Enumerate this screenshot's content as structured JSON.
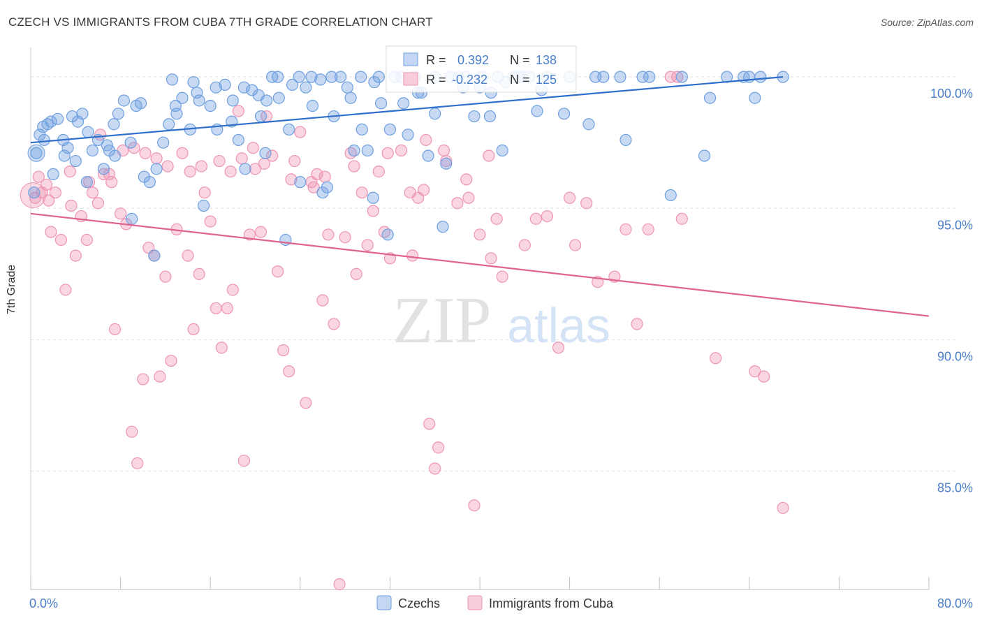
{
  "title": "CZECH VS IMMIGRANTS FROM CUBA 7TH GRADE CORRELATION CHART",
  "source": "Source: ZipAtlas.com",
  "watermark": {
    "zip": "ZIP",
    "atlas": "atlas"
  },
  "colors": {
    "czech": "#6e9fe0",
    "czech_line": "#2f6fcc",
    "cuba": "#ee94b4",
    "cuba_line": "#e0638f",
    "tick_text": "#4a7ec9",
    "grid": "#e1e1e1"
  },
  "legend": {
    "r_label": "R =",
    "n_label": "N =",
    "czech": {
      "r": "0.392",
      "n": "138"
    },
    "cuba": {
      "r": "-0.232",
      "n": "125"
    }
  },
  "chart_data": {
    "type": "scatter",
    "xlabel": "",
    "ylabel": "7th Grade",
    "xlim": [
      0,
      80
    ],
    "ylim": [
      80.5,
      100.8
    ],
    "x_tick_labels": [
      "0.0%",
      "80.0%"
    ],
    "y_ticks": [
      85,
      90,
      95,
      100
    ],
    "y_tick_labels": [
      "85.0%",
      "90.0%",
      "95.0%",
      "100.0%"
    ],
    "grid": true,
    "legend_position": "bottom-center",
    "series": [
      {
        "name": "Czechs",
        "r": 0.392,
        "n": 138,
        "trend": [
          [
            0,
            97.5
          ],
          [
            67,
            100.0
          ]
        ],
        "points": [
          [
            0.5,
            97.1
          ],
          [
            0.8,
            97.8
          ],
          [
            1.1,
            98.1
          ],
          [
            1.5,
            98.2
          ],
          [
            1.8,
            98.3
          ],
          [
            2.4,
            98.4
          ],
          [
            2.9,
            97.6
          ],
          [
            3.3,
            97.3
          ],
          [
            3.7,
            98.5
          ],
          [
            4.2,
            98.3
          ],
          [
            4.6,
            98.6
          ],
          [
            5.1,
            97.9
          ],
          [
            5.5,
            97.2
          ],
          [
            6.0,
            97.6
          ],
          [
            6.5,
            96.5
          ],
          [
            7.0,
            97.2
          ],
          [
            7.4,
            98.2
          ],
          [
            7.8,
            98.6
          ],
          [
            8.3,
            99.1
          ],
          [
            8.9,
            97.5
          ],
          [
            9.4,
            98.9
          ],
          [
            10.1,
            96.2
          ],
          [
            10.6,
            96.0
          ],
          [
            11.2,
            96.5
          ],
          [
            11.8,
            97.5
          ],
          [
            12.3,
            98.2
          ],
          [
            12.9,
            98.9
          ],
          [
            13.5,
            99.2
          ],
          [
            14.2,
            98.0
          ],
          [
            14.8,
            99.4
          ],
          [
            15.4,
            95.1
          ],
          [
            16.0,
            98.9
          ],
          [
            16.6,
            98.0
          ],
          [
            17.3,
            99.7
          ],
          [
            17.9,
            98.3
          ],
          [
            18.5,
            97.6
          ],
          [
            19.1,
            96.5
          ],
          [
            19.7,
            99.5
          ],
          [
            20.3,
            99.3
          ],
          [
            20.9,
            97.1
          ],
          [
            21.5,
            100.0
          ],
          [
            22.1,
            99.2
          ],
          [
            22.7,
            93.8
          ],
          [
            23.3,
            99.7
          ],
          [
            23.9,
            100.0
          ],
          [
            24.5,
            99.6
          ],
          [
            25.1,
            98.9
          ],
          [
            25.8,
            99.9
          ],
          [
            26.4,
            95.8
          ],
          [
            27.0,
            98.5
          ],
          [
            27.6,
            100.0
          ],
          [
            28.2,
            99.6
          ],
          [
            28.8,
            97.2
          ],
          [
            29.4,
            100.0
          ],
          [
            30.0,
            97.2
          ],
          [
            30.6,
            99.8
          ],
          [
            31.2,
            99.0
          ],
          [
            31.8,
            94.0
          ],
          [
            32.4,
            100.0
          ],
          [
            33.0,
            100.0
          ],
          [
            33.6,
            97.8
          ],
          [
            34.2,
            100.0
          ],
          [
            34.8,
            99.4
          ],
          [
            35.4,
            97.0
          ],
          [
            36.0,
            100.0
          ],
          [
            36.7,
            94.3
          ],
          [
            37.4,
            100.0
          ],
          [
            38.1,
            100.0
          ],
          [
            38.8,
            100.0
          ],
          [
            39.5,
            98.5
          ],
          [
            40.2,
            100.0
          ],
          [
            40.9,
            98.5
          ],
          [
            41.6,
            100.0
          ],
          [
            42.3,
            99.8
          ],
          [
            43.0,
            100.0
          ],
          [
            43.7,
            100.0
          ],
          [
            44.4,
            100.0
          ],
          [
            45.1,
            98.7
          ],
          [
            46.0,
            100.0
          ],
          [
            48.0,
            100.0
          ],
          [
            49.7,
            98.2
          ],
          [
            50.3,
            100.0
          ],
          [
            51.0,
            100.0
          ],
          [
            52.5,
            100.0
          ],
          [
            53.0,
            97.6
          ],
          [
            54.5,
            100.0
          ],
          [
            55.1,
            100.0
          ],
          [
            57.0,
            95.5
          ],
          [
            58.0,
            100.0
          ],
          [
            60.0,
            97.0
          ],
          [
            60.5,
            99.2
          ],
          [
            62.0,
            100.0
          ],
          [
            63.5,
            100.0
          ],
          [
            64.0,
            100.0
          ],
          [
            64.5,
            99.2
          ],
          [
            65.0,
            100.0
          ],
          [
            67.0,
            100.0
          ],
          [
            2.0,
            96.3
          ],
          [
            4.0,
            96.8
          ],
          [
            6.8,
            97.4
          ],
          [
            9.0,
            94.6
          ],
          [
            11.0,
            93.2
          ],
          [
            13.0,
            98.6
          ],
          [
            15.0,
            99.1
          ],
          [
            18.0,
            99.1
          ],
          [
            20.5,
            98.5
          ],
          [
            23.0,
            98.0
          ],
          [
            24.0,
            96.0
          ],
          [
            26.0,
            95.6
          ],
          [
            28.5,
            99.2
          ],
          [
            30.5,
            95.4
          ],
          [
            32.0,
            98.0
          ],
          [
            34.5,
            99.4
          ],
          [
            36.0,
            98.6
          ],
          [
            37.0,
            96.7
          ],
          [
            38.5,
            99.6
          ],
          [
            40.0,
            99.6
          ],
          [
            41.0,
            99.4
          ],
          [
            42.0,
            97.2
          ],
          [
            43.5,
            100.0
          ],
          [
            45.5,
            99.5
          ],
          [
            47.5,
            98.6
          ],
          [
            0.3,
            95.6
          ],
          [
            1.2,
            97.6
          ],
          [
            3.0,
            97.0
          ],
          [
            5.0,
            96.0
          ],
          [
            7.5,
            97.0
          ],
          [
            9.8,
            99.0
          ],
          [
            12.6,
            99.9
          ],
          [
            14.5,
            99.8
          ],
          [
            16.5,
            99.6
          ],
          [
            19.0,
            99.6
          ],
          [
            21.0,
            99.1
          ],
          [
            22.0,
            100.0
          ],
          [
            25.0,
            100.0
          ],
          [
            26.8,
            100.0
          ],
          [
            29.5,
            98.0
          ],
          [
            31.0,
            100.0
          ],
          [
            33.2,
            99.0
          ]
        ]
      },
      {
        "name": "Immigrants from Cuba",
        "r": -0.232,
        "n": 125,
        "trend": [
          [
            0,
            94.8
          ],
          [
            80,
            90.9
          ]
        ],
        "points": [
          [
            0.4,
            95.4
          ],
          [
            0.7,
            96.2
          ],
          [
            1.0,
            95.6
          ],
          [
            1.4,
            95.9
          ],
          [
            1.8,
            94.1
          ],
          [
            2.2,
            95.6
          ],
          [
            2.7,
            93.8
          ],
          [
            3.1,
            91.9
          ],
          [
            3.6,
            95.1
          ],
          [
            4.0,
            93.2
          ],
          [
            4.5,
            94.7
          ],
          [
            5.0,
            93.8
          ],
          [
            5.5,
            95.6
          ],
          [
            6.0,
            95.2
          ],
          [
            6.5,
            96.3
          ],
          [
            7.0,
            96.3
          ],
          [
            7.5,
            90.4
          ],
          [
            8.0,
            94.8
          ],
          [
            8.5,
            94.4
          ],
          [
            9.0,
            86.5
          ],
          [
            9.5,
            85.3
          ],
          [
            10.0,
            88.5
          ],
          [
            10.5,
            93.5
          ],
          [
            11.0,
            93.2
          ],
          [
            11.5,
            88.6
          ],
          [
            12.0,
            92.4
          ],
          [
            12.5,
            89.2
          ],
          [
            13.0,
            94.2
          ],
          [
            13.5,
            97.1
          ],
          [
            14.0,
            93.2
          ],
          [
            14.5,
            90.4
          ],
          [
            15.0,
            92.5
          ],
          [
            15.5,
            95.6
          ],
          [
            16.0,
            94.5
          ],
          [
            16.5,
            91.2
          ],
          [
            17.0,
            89.7
          ],
          [
            17.5,
            91.2
          ],
          [
            18.0,
            91.9
          ],
          [
            18.5,
            98.7
          ],
          [
            19.0,
            85.4
          ],
          [
            19.5,
            94.0
          ],
          [
            20.0,
            96.5
          ],
          [
            20.5,
            94.1
          ],
          [
            21.0,
            98.5
          ],
          [
            21.5,
            97.0
          ],
          [
            22.0,
            92.6
          ],
          [
            22.5,
            89.6
          ],
          [
            23.0,
            88.8
          ],
          [
            23.5,
            96.8
          ],
          [
            24.0,
            97.9
          ],
          [
            24.5,
            87.6
          ],
          [
            25.0,
            96.0
          ],
          [
            25.5,
            96.3
          ],
          [
            26.0,
            91.5
          ],
          [
            26.5,
            94.0
          ],
          [
            27.0,
            90.6
          ],
          [
            27.5,
            80.7
          ],
          [
            28.0,
            93.9
          ],
          [
            28.5,
            97.1
          ],
          [
            29.0,
            92.5
          ],
          [
            29.5,
            95.6
          ],
          [
            30.0,
            93.6
          ],
          [
            30.5,
            94.9
          ],
          [
            31.0,
            96.4
          ],
          [
            31.5,
            94.1
          ],
          [
            32.0,
            93.1
          ],
          [
            33.0,
            97.2
          ],
          [
            34.0,
            93.2
          ],
          [
            34.5,
            95.4
          ],
          [
            35.0,
            95.7
          ],
          [
            35.5,
            86.8
          ],
          [
            36.0,
            85.1
          ],
          [
            36.3,
            85.9
          ],
          [
            37.0,
            96.8
          ],
          [
            38.0,
            95.2
          ],
          [
            39.0,
            95.4
          ],
          [
            39.5,
            83.7
          ],
          [
            40.0,
            94.0
          ],
          [
            41.0,
            93.1
          ],
          [
            41.5,
            94.6
          ],
          [
            42.0,
            92.4
          ],
          [
            44.0,
            93.6
          ],
          [
            45.0,
            94.6
          ],
          [
            46.0,
            94.7
          ],
          [
            47.0,
            89.7
          ],
          [
            48.0,
            95.4
          ],
          [
            48.5,
            93.6
          ],
          [
            49.5,
            95.2
          ],
          [
            50.5,
            92.2
          ],
          [
            52.0,
            92.4
          ],
          [
            53.0,
            94.2
          ],
          [
            54.0,
            90.6
          ],
          [
            55.0,
            94.2
          ],
          [
            57.0,
            100.0
          ],
          [
            57.6,
            100.0
          ],
          [
            58.0,
            94.6
          ],
          [
            61.0,
            89.3
          ],
          [
            64.5,
            88.8
          ],
          [
            65.3,
            88.6
          ],
          [
            67.0,
            83.6
          ],
          [
            1.6,
            95.3
          ],
          [
            3.5,
            96.4
          ],
          [
            5.2,
            96.0
          ],
          [
            6.2,
            97.8
          ],
          [
            7.2,
            96.0
          ],
          [
            8.2,
            97.2
          ],
          [
            9.2,
            97.3
          ],
          [
            10.2,
            97.1
          ],
          [
            11.2,
            96.9
          ],
          [
            12.2,
            96.6
          ],
          [
            14.2,
            96.4
          ],
          [
            15.2,
            96.6
          ],
          [
            16.8,
            96.8
          ],
          [
            17.8,
            96.4
          ],
          [
            18.8,
            96.9
          ],
          [
            19.8,
            97.3
          ],
          [
            20.8,
            96.7
          ],
          [
            23.2,
            96.1
          ],
          [
            25.2,
            95.8
          ],
          [
            26.2,
            96.2
          ],
          [
            28.8,
            96.6
          ],
          [
            31.8,
            97.1
          ],
          [
            33.8,
            95.6
          ],
          [
            35.2,
            97.6
          ],
          [
            36.8,
            97.2
          ],
          [
            38.8,
            96.1
          ],
          [
            40.8,
            97.0
          ]
        ]
      }
    ]
  }
}
